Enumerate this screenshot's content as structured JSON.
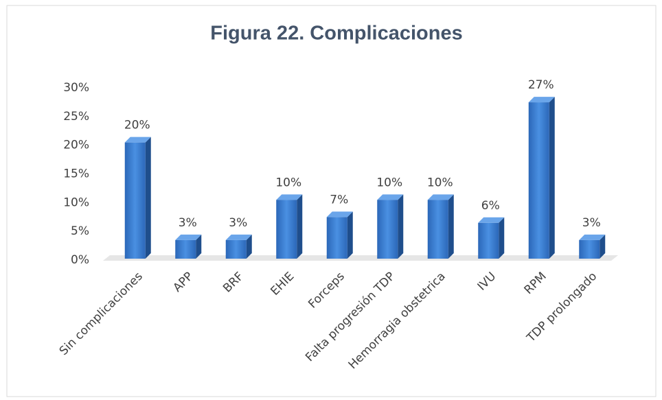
{
  "chart_data": {
    "type": "bar",
    "title": "Figura 22. Complicaciones",
    "categories": [
      "Sin complicaciones",
      "APP",
      "BRF",
      "EHIE",
      "Forceps",
      "Falta progresión TDP",
      "Hemorragia obstetrica",
      "IVU",
      "RPM",
      "TDP prolongado"
    ],
    "values": [
      20,
      3,
      3,
      10,
      7,
      10,
      10,
      6,
      27,
      3
    ],
    "value_labels": [
      "20%",
      "3%",
      "3%",
      "10%",
      "7%",
      "10%",
      "10%",
      "6%",
      "27%",
      "3%"
    ],
    "color": "#2e75d6",
    "ylim": [
      0,
      30
    ],
    "yticks": [
      {
        "value": 0,
        "label": "0%"
      },
      {
        "value": 5,
        "label": "5%"
      },
      {
        "value": 10,
        "label": "10%"
      },
      {
        "value": 15,
        "label": "15%"
      },
      {
        "value": 20,
        "label": "20%"
      },
      {
        "value": 25,
        "label": "25%"
      },
      {
        "value": 30,
        "label": "30%"
      }
    ],
    "grid": false
  }
}
